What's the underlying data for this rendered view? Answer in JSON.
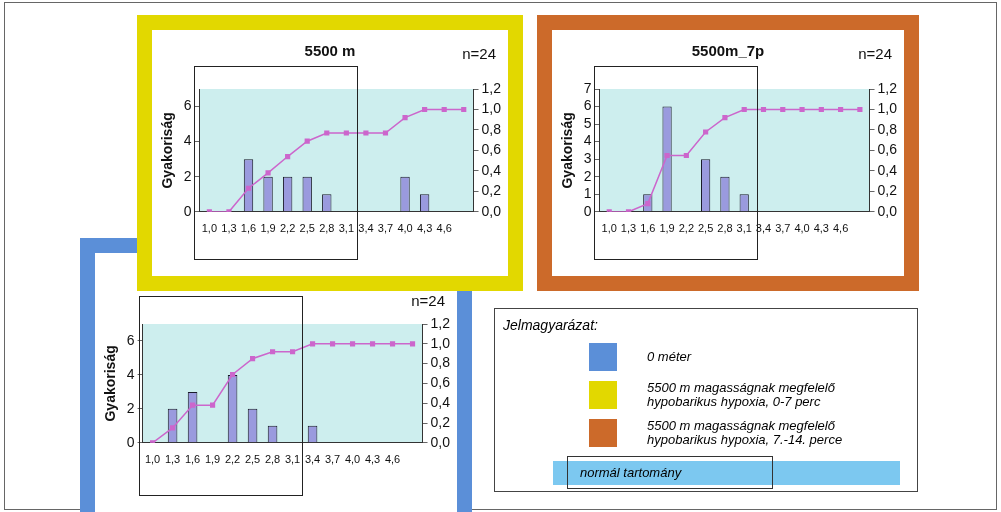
{
  "chart_data": [
    {
      "type": "bar",
      "title": "5500 m",
      "ylabel": "Gyakoriság",
      "annotations": [
        "n=24"
      ],
      "categories": [
        "1,0",
        "1,3",
        "1,6",
        "1,9",
        "2,2",
        "2,5",
        "2,8",
        "3,1",
        "3,4",
        "3,7",
        "4,0",
        "4,3",
        "4,6",
        null
      ],
      "series": [
        {
          "type": "bar",
          "color": "#9a9ade",
          "values": [
            null,
            null,
            3,
            2,
            2,
            2,
            1,
            null,
            null,
            null,
            2,
            1,
            null,
            null
          ]
        },
        {
          "type": "line",
          "axis": "y2",
          "color": "#cc66cc",
          "values": [
            0,
            0,
            0.23,
            0.38,
            0.54,
            0.69,
            0.77,
            0.77,
            0.77,
            0.77,
            0.92,
            1.0,
            1.0,
            1.0
          ]
        }
      ],
      "ylim": [
        0,
        7
      ],
      "yticks": [
        0,
        2,
        4,
        6
      ],
      "y2lim": [
        0,
        1.2
      ],
      "y2ticks": [
        {
          "value": 0,
          "label": "0,0"
        },
        {
          "value": 0.2,
          "label": "0,2"
        },
        {
          "value": 0.4,
          "label": "0,4"
        },
        {
          "value": 0.6,
          "label": "0,6"
        },
        {
          "value": 0.8,
          "label": "0,8"
        },
        {
          "value": 1,
          "label": "1,0"
        },
        {
          "value": 1.2,
          "label": "1,2"
        }
      ],
      "marker": "square",
      "legend": false,
      "grid": false
    },
    {
      "type": "bar",
      "title": "5500m_7p",
      "ylabel": "Gyakoriság",
      "annotations": [
        "n=24"
      ],
      "categories": [
        "1,0",
        "1,3",
        "1,6",
        "1,9",
        "2,2",
        "2,5",
        "2,8",
        "3,1",
        "3,4",
        "3,7",
        "4,0",
        "4,3",
        "4,6",
        null
      ],
      "series": [
        {
          "type": "bar",
          "color": "#9a9ade",
          "values": [
            null,
            null,
            1,
            6,
            null,
            3,
            2,
            1,
            null,
            null,
            null,
            null,
            null,
            null
          ]
        },
        {
          "type": "line",
          "axis": "y2",
          "color": "#cc66cc",
          "values": [
            0,
            0,
            0.08,
            0.55,
            0.55,
            0.78,
            0.92,
            1.0,
            1.0,
            1.0,
            1.0,
            1.0,
            1.0,
            1.0
          ]
        }
      ],
      "ylim": [
        0,
        7
      ],
      "yticks": [
        0,
        1,
        2,
        3,
        4,
        5,
        6,
        7
      ],
      "y2lim": [
        0,
        1.2
      ],
      "y2ticks": [
        {
          "value": 0,
          "label": "0,0"
        },
        {
          "value": 0.2,
          "label": "0,2"
        },
        {
          "value": 0.4,
          "label": "0,4"
        },
        {
          "value": 0.6,
          "label": "0,6"
        },
        {
          "value": 0.8,
          "label": "0,8"
        },
        {
          "value": 1,
          "label": "1,0"
        },
        {
          "value": 1.2,
          "label": "1,2"
        }
      ],
      "marker": "square",
      "legend": false,
      "grid": false
    },
    {
      "type": "bar",
      "ylabel": "Gyakoriság",
      "annotations": [
        "n=24"
      ],
      "categories": [
        "1,0",
        "1,3",
        "1,6",
        "1,9",
        "2,2",
        "2,5",
        "2,8",
        "3,1",
        "3,4",
        "3,7",
        "4,0",
        "4,3",
        "4,6",
        null
      ],
      "series": [
        {
          "type": "bar",
          "color": "#9a9ade",
          "values": [
            null,
            2,
            3,
            null,
            4,
            2,
            1,
            null,
            1,
            null,
            null,
            null,
            null,
            null
          ]
        },
        {
          "type": "line",
          "axis": "y2",
          "color": "#cc66cc",
          "values": [
            0,
            0.15,
            0.38,
            0.38,
            0.69,
            0.85,
            0.92,
            0.92,
            1.0,
            1.0,
            1.0,
            1.0,
            1.0,
            1.0
          ]
        }
      ],
      "ylim": [
        0,
        7
      ],
      "yticks": [
        0,
        2,
        4,
        6
      ],
      "y2lim": [
        0,
        1.2
      ],
      "y2ticks": [
        {
          "value": 0,
          "label": "0,0"
        },
        {
          "value": 0.2,
          "label": "0,2"
        },
        {
          "value": 0.4,
          "label": "0,4"
        },
        {
          "value": 0.6,
          "label": "0,6"
        },
        {
          "value": 0.8,
          "label": "0,8"
        },
        {
          "value": 1,
          "label": "1,0"
        },
        {
          "value": 1.2,
          "label": "1,2"
        }
      ],
      "marker": "square",
      "legend": false,
      "grid": false
    },
    {
      "type": "other",
      "title": "Jelmagyarázat:",
      "annotations": [
        "0 méter",
        "5500 m magasságnak megfelelő hypobarikus hypoxia, 0-7 perc",
        "5500 m magasságnak megfelelő hypobarikus hypoxia, 7.-14. perce",
        "normál tartomány"
      ],
      "colors": [
        "#5b8fd8",
        "#e2d800",
        "#cc6a2a",
        "#7cc8f0"
      ]
    }
  ]
}
